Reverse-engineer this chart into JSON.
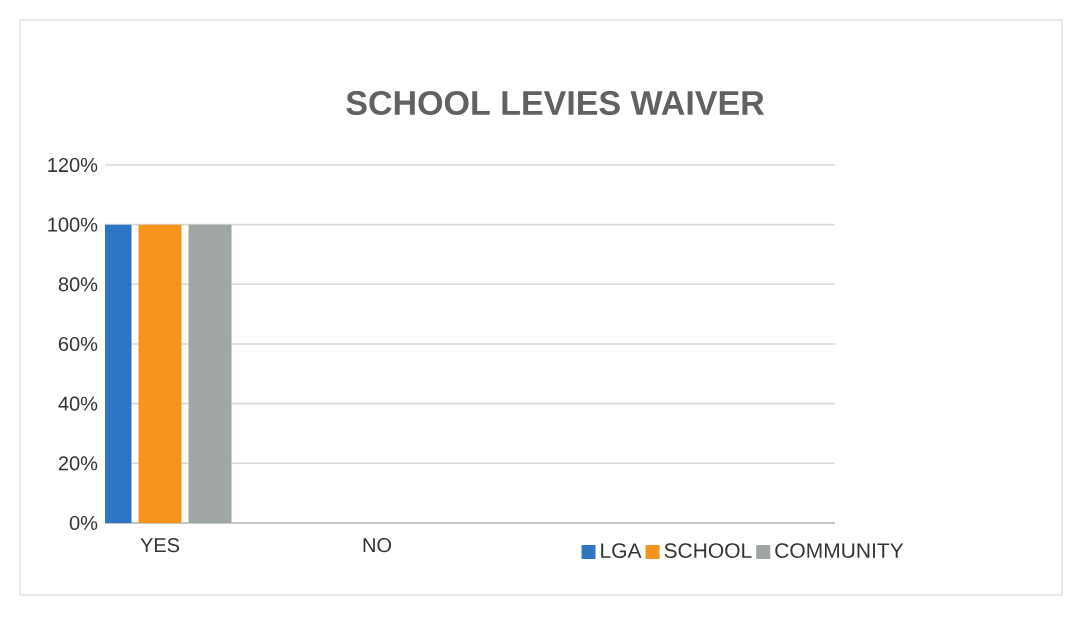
{
  "chart_data": {
    "type": "bar",
    "title": "SCHOOL LEVIES WAIVER",
    "categories": [
      "YES",
      "NO"
    ],
    "series": [
      {
        "name": "LGA",
        "color": "#2e75c6",
        "values": [
          100,
          0
        ]
      },
      {
        "name": "SCHOOL",
        "color": "#f7941d",
        "values": [
          100,
          0
        ]
      },
      {
        "name": "COMMUNITY",
        "color": "#a0a6a2",
        "values": [
          100,
          0
        ]
      }
    ],
    "ylim": [
      0,
      120
    ],
    "yticks": [
      {
        "value": 0,
        "label": "0%"
      },
      {
        "value": 20,
        "label": "20%"
      },
      {
        "value": 40,
        "label": "40%"
      },
      {
        "value": 60,
        "label": "60%"
      },
      {
        "value": 80,
        "label": "80%"
      },
      {
        "value": 100,
        "label": "100%"
      },
      {
        "value": 120,
        "label": "120%"
      }
    ],
    "grid": "y",
    "legend": "bottom right"
  }
}
